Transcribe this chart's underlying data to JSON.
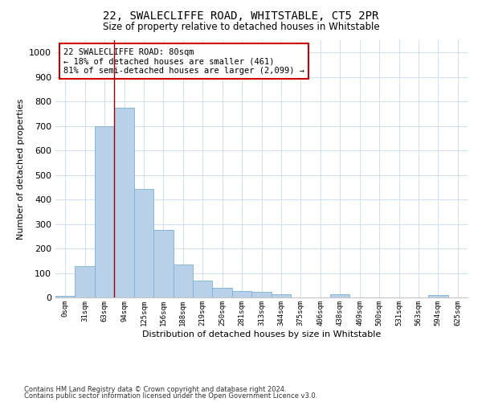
{
  "title": "22, SWALECLIFFE ROAD, WHITSTABLE, CT5 2PR",
  "subtitle": "Size of property relative to detached houses in Whitstable",
  "xlabel": "Distribution of detached houses by size in Whitstable",
  "ylabel": "Number of detached properties",
  "bar_color": "#b8d0e8",
  "bar_edge_color": "#7aafd4",
  "grid_color": "#d0dff0",
  "vline_color": "#990000",
  "vline_x": 2.5,
  "annotation_text": "22 SWALECLIFFE ROAD: 80sqm\n← 18% of detached houses are smaller (461)\n81% of semi-detached houses are larger (2,099) →",
  "annotation_box_color": "#ffffff",
  "annotation_box_edge": "#cc0000",
  "categories": [
    "0sqm",
    "31sqm",
    "63sqm",
    "94sqm",
    "125sqm",
    "156sqm",
    "188sqm",
    "219sqm",
    "250sqm",
    "281sqm",
    "313sqm",
    "344sqm",
    "375sqm",
    "406sqm",
    "438sqm",
    "469sqm",
    "500sqm",
    "531sqm",
    "563sqm",
    "594sqm",
    "625sqm"
  ],
  "values": [
    8,
    128,
    700,
    775,
    443,
    275,
    133,
    70,
    40,
    25,
    22,
    12,
    0,
    0,
    12,
    0,
    0,
    0,
    0,
    10,
    0
  ],
  "ylim": [
    0,
    1050
  ],
  "yticks": [
    0,
    100,
    200,
    300,
    400,
    500,
    600,
    700,
    800,
    900,
    1000
  ],
  "footer1": "Contains HM Land Registry data © Crown copyright and database right 2024.",
  "footer2": "Contains public sector information licensed under the Open Government Licence v3.0.",
  "figsize": [
    6.0,
    5.0
  ],
  "dpi": 100
}
